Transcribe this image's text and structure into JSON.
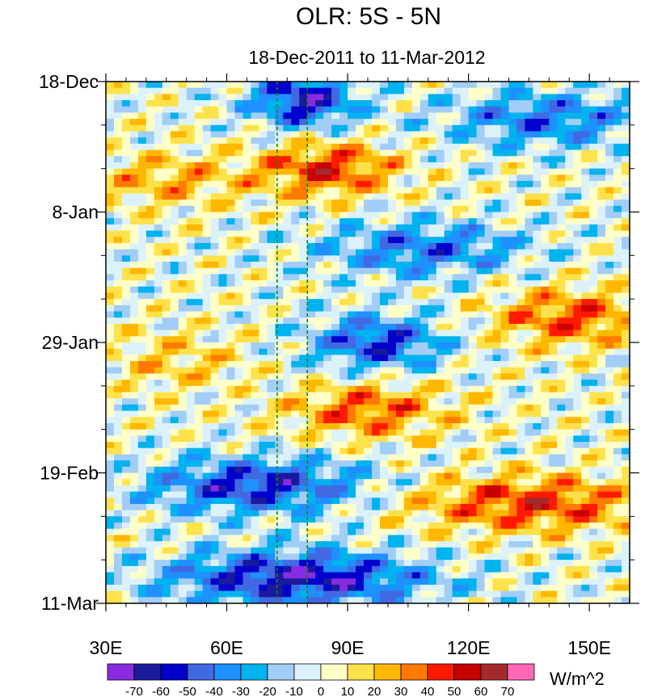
{
  "title": "OLR: 5S - 5N",
  "subtitle": "18-Dec-2011 to 11-Mar-2012",
  "chart_data": {
    "type": "heatmap",
    "title": "OLR: 5S - 5N",
    "subtitle": "18-Dec-2011 to 11-Mar-2012",
    "xlabel": "",
    "ylabel": "",
    "x_range_degE": [
      30,
      160
    ],
    "y_range_days_since_start": [
      0,
      84
    ],
    "x_ticks": [
      {
        "value": 30,
        "label": "30E"
      },
      {
        "value": 60,
        "label": "60E"
      },
      {
        "value": 90,
        "label": "90E"
      },
      {
        "value": 120,
        "label": "120E"
      },
      {
        "value": 150,
        "label": "150E"
      }
    ],
    "y_ticks": [
      {
        "value": 0,
        "label": "18-Dec"
      },
      {
        "value": 21,
        "label": "8-Jan"
      },
      {
        "value": 42,
        "label": "29-Jan"
      },
      {
        "value": 63,
        "label": "19-Feb"
      },
      {
        "value": 84,
        "label": "11-Mar"
      }
    ],
    "reference_lines_degE": [
      72.5,
      80
    ],
    "reference_line_color": "#138a13",
    "units": "W/m^2",
    "colorbar": {
      "levels": [
        -70,
        -60,
        -50,
        -40,
        -30,
        -20,
        -10,
        0,
        10,
        20,
        30,
        40,
        50,
        60,
        70
      ],
      "labels": [
        "-70",
        "-60",
        "-50",
        "-40",
        "-30",
        "-20",
        "-10",
        "0",
        "10",
        "20",
        "30",
        "40",
        "50",
        "60",
        "70"
      ],
      "colors": [
        "#8a2be2",
        "#1a1a9c",
        "#0000cd",
        "#4169e1",
        "#1e90ff",
        "#00b2ee",
        "#a2cdf6",
        "#dcf2fa",
        "#ffffc8",
        "#ffe14b",
        "#ffb700",
        "#ff7a00",
        "#ff1a00",
        "#c80000",
        "#a52a2a",
        "#ff69b4"
      ]
    },
    "missing_color": "#c0c0c0",
    "features": [
      {
        "lon": 70,
        "lon_end": 88,
        "day": 3,
        "value": -60
      },
      {
        "lon": 72,
        "lon_end": 98,
        "day": 14,
        "value": 45
      },
      {
        "lon": 30,
        "lon_end": 60,
        "day": 16,
        "value": 25
      },
      {
        "lon": 88,
        "lon_end": 130,
        "day": 27,
        "value": -40
      },
      {
        "lon": 35,
        "lon_end": 60,
        "day": 45,
        "value": 20
      },
      {
        "lon": 85,
        "lon_end": 110,
        "day": 42,
        "value": -50
      },
      {
        "lon": 80,
        "lon_end": 110,
        "day": 53,
        "value": 40
      },
      {
        "lon": 130,
        "lon_end": 160,
        "day": 38,
        "value": 40
      },
      {
        "lon": 45,
        "lon_end": 90,
        "day": 65,
        "value": -55
      },
      {
        "lon": 110,
        "lon_end": 160,
        "day": 68,
        "value": 45
      },
      {
        "lon": 50,
        "lon_end": 105,
        "day": 80,
        "value": -65
      },
      {
        "lon": 118,
        "lon_end": 160,
        "day": 6,
        "value": -40
      }
    ]
  }
}
